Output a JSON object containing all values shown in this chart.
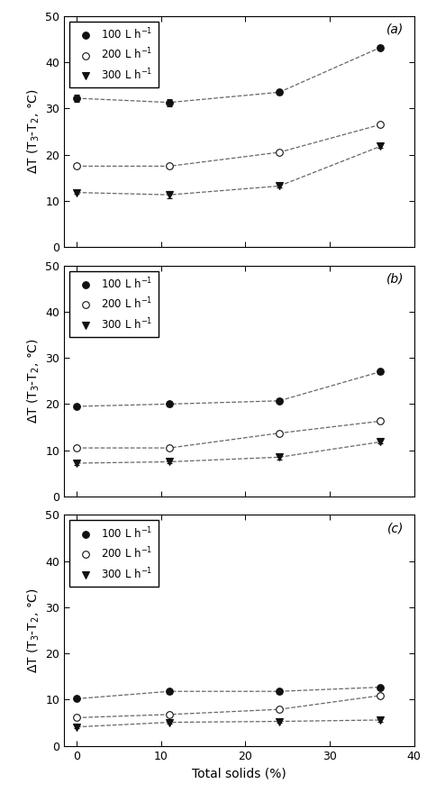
{
  "x": [
    0,
    11,
    24,
    36
  ],
  "panels": [
    {
      "label": "(a)",
      "series": [
        {
          "name": "100 L h$^{-1}$",
          "marker": "o",
          "filled": true,
          "y": [
            32.2,
            31.3,
            33.5,
            43.2
          ],
          "yerr": [
            0.8,
            0.8,
            0.5,
            0.5
          ]
        },
        {
          "name": "200 L h$^{-1}$",
          "marker": "o",
          "filled": false,
          "y": [
            17.5,
            17.5,
            20.5,
            26.5
          ],
          "yerr": [
            0.3,
            0.3,
            0.3,
            0.3
          ]
        },
        {
          "name": "300 L h$^{-1}$",
          "marker": "v",
          "filled": true,
          "y": [
            11.8,
            11.3,
            13.2,
            21.8
          ],
          "yerr": [
            0.3,
            0.8,
            0.4,
            0.4
          ]
        }
      ],
      "ylim": [
        0,
        50
      ],
      "yticks": [
        0,
        10,
        20,
        30,
        40,
        50
      ]
    },
    {
      "label": "(b)",
      "series": [
        {
          "name": "100 L h$^{-1}$",
          "marker": "o",
          "filled": true,
          "y": [
            19.5,
            20.0,
            20.7,
            27.0
          ],
          "yerr": [
            0.3,
            0.5,
            0.5,
            0.5
          ]
        },
        {
          "name": "200 L h$^{-1}$",
          "marker": "o",
          "filled": false,
          "y": [
            10.5,
            10.5,
            13.7,
            16.3
          ],
          "yerr": [
            0.3,
            0.3,
            0.4,
            0.3
          ]
        },
        {
          "name": "300 L h$^{-1}$",
          "marker": "v",
          "filled": true,
          "y": [
            7.2,
            7.5,
            8.5,
            11.8
          ],
          "yerr": [
            0.3,
            0.3,
            0.5,
            0.4
          ]
        }
      ],
      "ylim": [
        0,
        50
      ],
      "yticks": [
        0,
        10,
        20,
        30,
        40,
        50
      ]
    },
    {
      "label": "(c)",
      "series": [
        {
          "name": "100 L h$^{-1}$",
          "marker": "o",
          "filled": true,
          "y": [
            10.2,
            11.8,
            11.8,
            12.7
          ],
          "yerr": [
            0.3,
            0.5,
            0.5,
            0.4
          ]
        },
        {
          "name": "200 L h$^{-1}$",
          "marker": "o",
          "filled": false,
          "y": [
            6.1,
            6.8,
            7.9,
            10.9
          ],
          "yerr": [
            0.3,
            0.4,
            0.3,
            0.3
          ]
        },
        {
          "name": "300 L h$^{-1}$",
          "marker": "v",
          "filled": true,
          "y": [
            4.1,
            5.1,
            5.3,
            5.6
          ],
          "yerr": [
            0.3,
            0.3,
            0.3,
            0.3
          ]
        }
      ],
      "ylim": [
        0,
        50
      ],
      "yticks": [
        0,
        10,
        20,
        30,
        40,
        50
      ]
    }
  ],
  "xlabel": "Total solids (%)",
  "ylabel": "$\\Delta$T (T$_3$-T$_2$, °C)",
  "legend_labels": [
    "100 L h$^{-1}$",
    "200 L h$^{-1}$",
    "300 L h$^{-1}$"
  ],
  "xticks": [
    0,
    10,
    20,
    30,
    40
  ],
  "xlim": [
    -1.5,
    40
  ],
  "line_color": "#666666",
  "marker_color_filled": "#111111",
  "background_color": "#ffffff",
  "fontsize_label": 10,
  "fontsize_tick": 9,
  "fontsize_legend": 8.5,
  "fontsize_panel_label": 10
}
